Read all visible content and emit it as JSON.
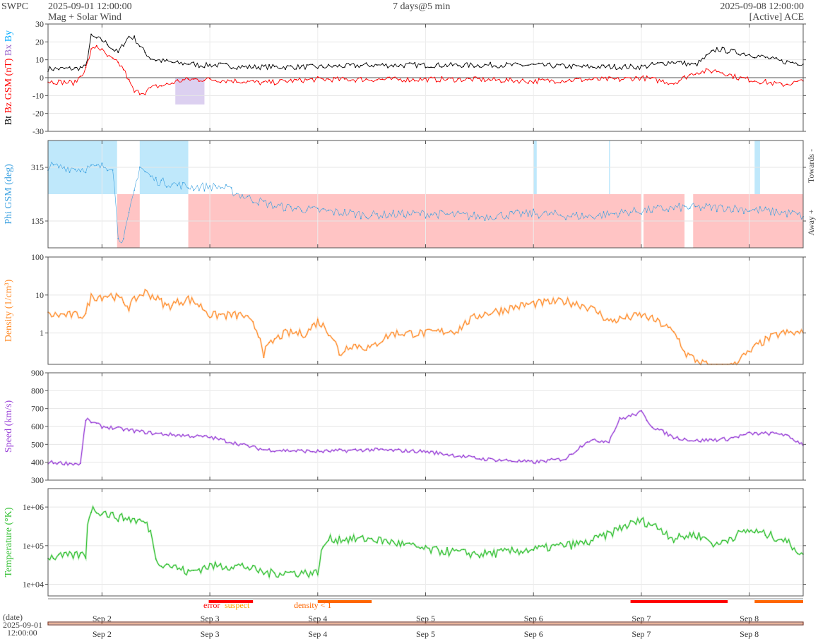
{
  "header": {
    "org": "SWPC",
    "start": "2025-09-01 12:00:00",
    "subtitle": "Mag + Solar Wind",
    "span": "7 days@5 min",
    "end": "2025-09-08 12:00:00",
    "source": "[Active] ACE"
  },
  "footer": {
    "date_label": "(date)",
    "date_value": "2025-09-01",
    "time_value": "12:00:00",
    "flags": [
      {
        "label": "error",
        "color": "#ff0000"
      },
      {
        "label": "suspect",
        "color": "#ffa500"
      },
      {
        "label": "density < 1",
        "color": "#ff6600"
      }
    ]
  },
  "colors": {
    "bt": "#000000",
    "bz": "#ff0000",
    "by": "#00aaff",
    "bx": "#9966cc",
    "phi": "#3aa0e0",
    "density": "#ff8c2a",
    "speed": "#9b44d8",
    "temperature": "#2fbf2f",
    "towards_fill": "#bfe8fb",
    "away_fill": "#ffc4c4"
  },
  "chart_data": {
    "type": "line",
    "x_range": [
      "2025-09-01 12:00",
      "2025-09-08 12:00"
    ],
    "x_ticks": [
      "Sep 2",
      "Sep 3",
      "Sep 4",
      "Sep 5",
      "Sep 6",
      "Sep 7",
      "Sep 8"
    ],
    "panels": [
      {
        "name": "mag",
        "ylabel_parts": [
          {
            "text": "Bt",
            "series": "bt"
          },
          {
            "text": "Bz",
            "series": "bz"
          },
          {
            "text": "GSM (nT)",
            "series": "bz"
          },
          {
            "text": "Bx",
            "series": "bx"
          },
          {
            "text": "By",
            "series": "by"
          }
        ],
        "ylim": [
          -30,
          30
        ],
        "yticks": [
          -30,
          -20,
          -10,
          0,
          10,
          20,
          30
        ],
        "series": [
          {
            "key": "bt",
            "x": [
              0,
              0.25,
              0.35,
              0.4,
              0.45,
              0.5,
              0.55,
              0.6,
              0.65,
              0.7,
              0.75,
              0.8,
              0.85,
              0.9,
              0.95,
              1.0,
              1.1,
              1.2,
              1.3,
              1.4,
              1.5,
              1.6,
              1.8,
              2.0,
              2.2,
              2.5,
              3.0,
              3.5,
              4.0,
              4.5,
              5.0,
              5.5,
              5.8,
              6.0,
              6.2,
              6.4,
              6.6,
              6.8,
              7.0
            ],
            "values": [
              5,
              5,
              6,
              23,
              22,
              21,
              19,
              16,
              14,
              19,
              23,
              22,
              18,
              14,
              11,
              10,
              9,
              8,
              8,
              7,
              7,
              7,
              6,
              6,
              6,
              6,
              7,
              7,
              7,
              7,
              6,
              6,
              9,
              7,
              16,
              14,
              12,
              9,
              8
            ]
          },
          {
            "key": "bz",
            "x": [
              0,
              0.25,
              0.35,
              0.4,
              0.45,
              0.5,
              0.55,
              0.6,
              0.65,
              0.7,
              0.75,
              0.8,
              0.85,
              0.9,
              0.95,
              1.0,
              1.1,
              1.2,
              1.3,
              1.5,
              1.8,
              2.0,
              2.2,
              2.5,
              3.0,
              3.5,
              4.0,
              4.5,
              5.0,
              5.3,
              5.5,
              5.8,
              6.0,
              6.2,
              6.4,
              6.6,
              6.8,
              7.0
            ],
            "values": [
              -2,
              -3,
              5,
              15,
              18,
              15,
              12,
              10,
              8,
              5,
              -2,
              -8,
              -8,
              -8,
              -6,
              -5,
              -4,
              -2,
              -1,
              -1,
              -2,
              -3,
              -2,
              -1,
              -1,
              -1,
              -1,
              -2,
              -1,
              -1,
              0,
              -3,
              3,
              4,
              0,
              -2,
              -4,
              -2
            ]
          }
        ]
      },
      {
        "name": "phi",
        "ylabel": "Phi GSM (deg)",
        "ylim": [
          45,
          405
        ],
        "yticks": [
          135,
          315
        ],
        "right_labels": [
          "Towards -",
          "Away +"
        ],
        "series": [
          {
            "key": "phi",
            "x": [
              0,
              0.3,
              0.6,
              0.65,
              0.7,
              0.85,
              0.9,
              1.0,
              1.3,
              1.6,
              1.8,
              2.1,
              2.5,
              3.0,
              3.5,
              4.0,
              4.5,
              5.0,
              5.5,
              5.9,
              6.0,
              6.3,
              6.6,
              6.9,
              7.0
            ],
            "values": [
              320,
              310,
              320,
              85,
              70,
              320,
              300,
              270,
              250,
              250,
              220,
              185,
              170,
              155,
              160,
              150,
              160,
              150,
              170,
              180,
              180,
              180,
              170,
              160,
              150
            ]
          }
        ]
      },
      {
        "name": "density",
        "ylabel": "Density (1/cm³)",
        "yscale": "log",
        "ylim": [
          0.15,
          100
        ],
        "yticks": [
          1,
          10,
          100
        ],
        "series": [
          {
            "key": "density",
            "x": [
              0,
              0.35,
              0.4,
              0.6,
              0.75,
              0.9,
              1.1,
              1.3,
              1.5,
              1.8,
              2.0,
              2.2,
              2.4,
              2.5,
              2.7,
              2.8,
              3.0,
              3.2,
              3.5,
              3.8,
              4.0,
              4.2,
              4.5,
              4.8,
              5.0,
              5.2,
              5.5,
              5.8,
              5.9,
              6.0,
              6.2,
              6.3,
              6.5,
              6.8,
              7.0
            ],
            "values": [
              3,
              3,
              9,
              10,
              5,
              12,
              5,
              8,
              3,
              3,
              0.3,
              1,
              1,
              2,
              0.25,
              0.5,
              0.4,
              1,
              1,
              1.2,
              3,
              4,
              6,
              7,
              5,
              2,
              3,
              1,
              0.3,
              0.2,
              0.1,
              0.1,
              0.3,
              1,
              1
            ]
          }
        ]
      },
      {
        "name": "speed",
        "ylabel": "Speed (km/s)",
        "ylim": [
          300,
          900
        ],
        "yticks": [
          300,
          400,
          500,
          600,
          700,
          800,
          900
        ],
        "series": [
          {
            "key": "speed",
            "x": [
              0,
              0.3,
              0.35,
              0.5,
              1.0,
              1.5,
              2.0,
              2.5,
              3.0,
              3.5,
              4.0,
              4.5,
              4.8,
              5.0,
              5.2,
              5.3,
              5.5,
              5.6,
              5.8,
              5.9,
              6.0,
              6.3,
              6.5,
              6.8,
              7.0
            ],
            "values": [
              400,
              390,
              640,
              600,
              560,
              540,
              470,
              460,
              470,
              460,
              420,
              400,
              420,
              520,
              520,
              640,
              680,
              600,
              540,
              530,
              520,
              530,
              560,
              560,
              500
            ]
          }
        ]
      },
      {
        "name": "temperature",
        "ylabel": "Temperature (°K)",
        "yscale": "log",
        "ylim": [
          5000,
          3000000
        ],
        "yticks": [
          10000,
          100000,
          1000000
        ],
        "ytick_labels": [
          "1e+04",
          "1e+05",
          "1e+06"
        ],
        "series": [
          {
            "key": "temperature",
            "x": [
              0,
              0.35,
              0.4,
              0.6,
              0.9,
              1.0,
              1.3,
              1.5,
              1.8,
              2.0,
              2.5,
              2.6,
              3.0,
              3.5,
              4.0,
              4.5,
              5.0,
              5.2,
              5.5,
              5.8,
              6.0,
              6.2,
              6.5,
              6.8,
              7.0
            ],
            "values": [
              50000,
              60000,
              900000,
              600000,
              400000,
              40000,
              20000,
              30000,
              30000,
              20000,
              20000,
              150000,
              150000,
              80000,
              60000,
              80000,
              120000,
              200000,
              450000,
              150000,
              200000,
              100000,
              250000,
              150000,
              50000
            ]
          }
        ]
      }
    ]
  }
}
